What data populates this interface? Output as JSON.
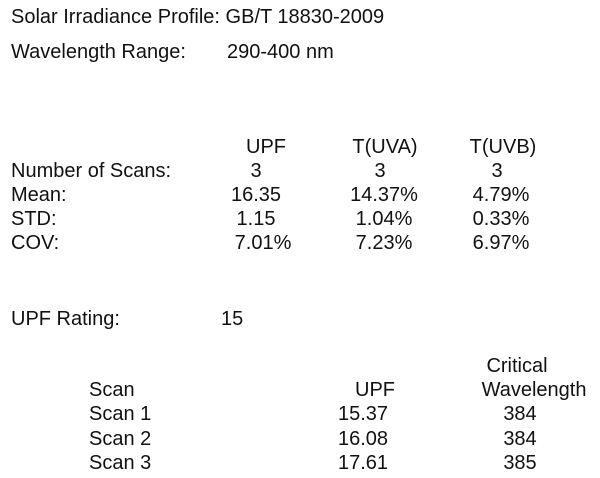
{
  "header": {
    "title": "Solar Irradiance Profile: GB/T 18830-2009",
    "wavelength_label": "Wavelength Range:",
    "wavelength_value": "290-400 nm"
  },
  "summary": {
    "columns": [
      "UPF",
      "T(UVA)",
      "T(UVB)"
    ],
    "rows": [
      {
        "label": "Number of Scans:",
        "values": [
          "3",
          "3",
          "3"
        ]
      },
      {
        "label": "Mean:",
        "values": [
          "16.35",
          "14.37%",
          "4.79%"
        ]
      },
      {
        "label": "STD:",
        "values": [
          "1.15",
          "1.04%",
          "0.33%"
        ]
      },
      {
        "label": "COV:",
        "values": [
          "7.01%",
          "7.23%",
          "6.97%"
        ]
      }
    ]
  },
  "rating": {
    "label": "UPF Rating:",
    "value": "15"
  },
  "scans": {
    "headers": {
      "scan": "Scan",
      "upf": "UPF",
      "critical_line1": "Critical",
      "critical_line2": "Wavelength"
    },
    "rows": [
      {
        "scan": "Scan 1",
        "upf": "15.37",
        "wavelength": "384"
      },
      {
        "scan": "Scan 2",
        "upf": "16.08",
        "wavelength": "384"
      },
      {
        "scan": "Scan 3",
        "upf": "17.61",
        "wavelength": "385"
      }
    ]
  }
}
